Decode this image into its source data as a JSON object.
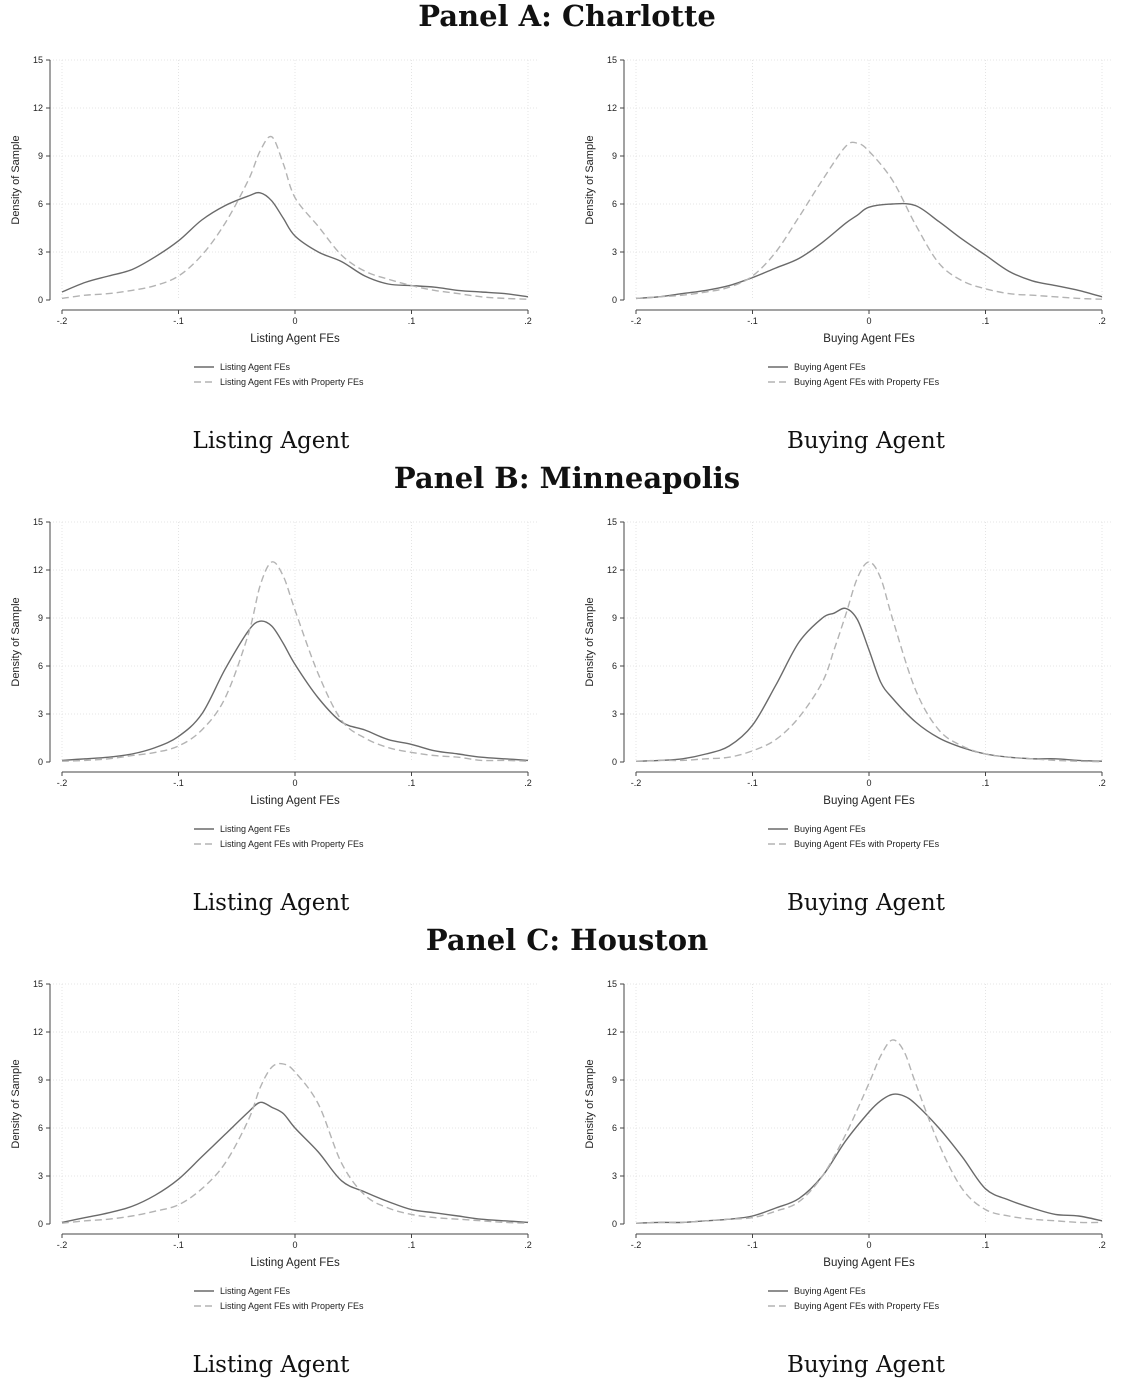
{
  "panels": [
    {
      "title": "Panel A: Charlotte"
    },
    {
      "title": "Panel B: Minneapolis"
    },
    {
      "title": "Panel C: Houston"
    }
  ],
  "captions": {
    "listing": "Listing Agent",
    "buying": "Buying Agent"
  },
  "colors": {
    "solid": "#6a6a6a",
    "dashed": "#b3b3b3",
    "grid": "#e4e4e4",
    "axis": "#444444"
  },
  "chart_data": [
    {
      "type": "line",
      "panel": "Panel A: Charlotte",
      "xlabel": "Listing Agent FEs",
      "ylabel": "Density of Sample",
      "xlim": [
        -0.2,
        0.2
      ],
      "ylim": [
        0,
        15
      ],
      "xticks": [
        -0.2,
        -0.1,
        0,
        0.1,
        0.2
      ],
      "xticklabels": [
        "-.2",
        "-.1",
        "0",
        ".1",
        ".2"
      ],
      "yticks": [
        0,
        3,
        6,
        9,
        12,
        15
      ],
      "yticklabels": [
        "0",
        "3",
        "6",
        "9",
        "12",
        "15"
      ],
      "grid": true,
      "legend_position": "bottom",
      "x": [
        -0.2,
        -0.18,
        -0.16,
        -0.14,
        -0.12,
        -0.1,
        -0.08,
        -0.06,
        -0.04,
        -0.03,
        -0.02,
        -0.01,
        0,
        0.02,
        0.04,
        0.06,
        0.08,
        0.1,
        0.12,
        0.14,
        0.16,
        0.18,
        0.2
      ],
      "series": [
        {
          "name": "Listing Agent FEs",
          "style": "solid",
          "values": [
            0.5,
            1.1,
            1.5,
            1.9,
            2.7,
            3.7,
            5.0,
            5.9,
            6.5,
            6.7,
            6.2,
            5.1,
            4.0,
            3.0,
            2.4,
            1.5,
            1.0,
            0.9,
            0.8,
            0.6,
            0.5,
            0.4,
            0.2
          ]
        },
        {
          "name": "Listing Agent FEs with Property FEs",
          "style": "dashed",
          "values": [
            0.1,
            0.3,
            0.4,
            0.6,
            0.9,
            1.5,
            2.8,
            4.8,
            7.5,
            9.3,
            10.2,
            8.5,
            6.4,
            4.6,
            2.8,
            1.8,
            1.3,
            0.9,
            0.6,
            0.4,
            0.2,
            0.1,
            0.05
          ]
        }
      ]
    },
    {
      "type": "line",
      "panel": "Panel A: Charlotte",
      "xlabel": "Buying Agent FEs",
      "ylabel": "Density of Sample",
      "xlim": [
        -0.2,
        0.2
      ],
      "ylim": [
        0,
        15
      ],
      "xticks": [
        -0.2,
        -0.1,
        0,
        0.1,
        0.2
      ],
      "xticklabels": [
        "-.2",
        "-.1",
        "0",
        ".1",
        ".2"
      ],
      "yticks": [
        0,
        3,
        6,
        9,
        12,
        15
      ],
      "yticklabels": [
        "0",
        "3",
        "6",
        "9",
        "12",
        "15"
      ],
      "grid": true,
      "legend_position": "bottom",
      "x": [
        -0.2,
        -0.18,
        -0.16,
        -0.14,
        -0.12,
        -0.1,
        -0.08,
        -0.06,
        -0.04,
        -0.02,
        -0.01,
        0,
        0.02,
        0.04,
        0.06,
        0.08,
        0.1,
        0.12,
        0.14,
        0.16,
        0.18,
        0.2
      ],
      "series": [
        {
          "name": "Buying Agent FEs",
          "style": "solid",
          "values": [
            0.1,
            0.2,
            0.4,
            0.6,
            0.9,
            1.4,
            2.0,
            2.6,
            3.6,
            4.8,
            5.3,
            5.8,
            6.0,
            5.9,
            4.9,
            3.8,
            2.8,
            1.8,
            1.2,
            0.9,
            0.6,
            0.2
          ]
        },
        {
          "name": "Buying Agent FEs with Property FEs",
          "style": "dashed",
          "values": [
            0.1,
            0.2,
            0.3,
            0.5,
            0.8,
            1.5,
            3.0,
            5.2,
            7.5,
            9.6,
            9.8,
            9.3,
            7.5,
            4.7,
            2.3,
            1.2,
            0.7,
            0.4,
            0.3,
            0.2,
            0.1,
            0.05
          ]
        }
      ]
    },
    {
      "type": "line",
      "panel": "Panel B: Minneapolis",
      "xlabel": "Listing Agent FEs",
      "ylabel": "Density of Sample",
      "xlim": [
        -0.2,
        0.2
      ],
      "ylim": [
        0,
        15
      ],
      "xticks": [
        -0.2,
        -0.1,
        0,
        0.1,
        0.2
      ],
      "xticklabels": [
        "-.2",
        "-.1",
        "0",
        ".1",
        ".2"
      ],
      "yticks": [
        0,
        3,
        6,
        9,
        12,
        15
      ],
      "yticklabels": [
        "0",
        "3",
        "6",
        "9",
        "12",
        "15"
      ],
      "grid": true,
      "legend_position": "bottom",
      "x": [
        -0.2,
        -0.18,
        -0.16,
        -0.14,
        -0.12,
        -0.1,
        -0.08,
        -0.06,
        -0.04,
        -0.03,
        -0.02,
        -0.01,
        0,
        0.02,
        0.04,
        0.06,
        0.08,
        0.1,
        0.12,
        0.14,
        0.16,
        0.18,
        0.2
      ],
      "series": [
        {
          "name": "Listing Agent FEs",
          "style": "solid",
          "values": [
            0.1,
            0.2,
            0.3,
            0.5,
            0.9,
            1.6,
            3.0,
            5.8,
            8.2,
            8.8,
            8.5,
            7.4,
            6.1,
            4.0,
            2.5,
            2.0,
            1.4,
            1.1,
            0.7,
            0.5,
            0.3,
            0.2,
            0.1
          ]
        },
        {
          "name": "Listing Agent FEs with Property FEs",
          "style": "dashed",
          "values": [
            0.05,
            0.1,
            0.2,
            0.4,
            0.6,
            1.0,
            2.0,
            4.0,
            8.0,
            11.0,
            12.5,
            11.6,
            9.5,
            5.5,
            2.6,
            1.5,
            0.9,
            0.6,
            0.4,
            0.3,
            0.1,
            0.1,
            0.05
          ]
        }
      ]
    },
    {
      "type": "line",
      "panel": "Panel B: Minneapolis",
      "xlabel": "Buying Agent FEs",
      "ylabel": "Density of Sample",
      "xlim": [
        -0.2,
        0.2
      ],
      "ylim": [
        0,
        15
      ],
      "xticks": [
        -0.2,
        -0.1,
        0,
        0.1,
        0.2
      ],
      "xticklabels": [
        "-.2",
        "-.1",
        "0",
        ".1",
        ".2"
      ],
      "yticks": [
        0,
        3,
        6,
        9,
        12,
        15
      ],
      "yticklabels": [
        "0",
        "3",
        "6",
        "9",
        "12",
        "15"
      ],
      "grid": true,
      "legend_position": "bottom",
      "x": [
        -0.2,
        -0.18,
        -0.16,
        -0.14,
        -0.12,
        -0.1,
        -0.08,
        -0.06,
        -0.04,
        -0.03,
        -0.02,
        -0.01,
        0,
        0.01,
        0.02,
        0.04,
        0.06,
        0.08,
        0.1,
        0.12,
        0.14,
        0.16,
        0.18,
        0.2
      ],
      "series": [
        {
          "name": "Buying Agent FEs",
          "style": "solid",
          "values": [
            0.05,
            0.1,
            0.2,
            0.5,
            1.0,
            2.3,
            4.8,
            7.5,
            9.0,
            9.3,
            9.6,
            8.9,
            7.0,
            5.0,
            4.0,
            2.5,
            1.5,
            0.9,
            0.5,
            0.3,
            0.2,
            0.2,
            0.1,
            0.05
          ]
        },
        {
          "name": "Buying Agent FEs with Property FEs",
          "style": "dashed",
          "values": [
            0.05,
            0.1,
            0.1,
            0.2,
            0.3,
            0.7,
            1.4,
            2.8,
            5.0,
            7.0,
            9.2,
            11.5,
            12.5,
            11.5,
            9.0,
            4.5,
            2.0,
            1.0,
            0.5,
            0.3,
            0.2,
            0.1,
            0.05,
            0.02
          ]
        }
      ]
    },
    {
      "type": "line",
      "panel": "Panel C: Houston",
      "xlabel": "Listing Agent FEs",
      "ylabel": "Density of Sample",
      "xlim": [
        -0.2,
        0.2
      ],
      "ylim": [
        0,
        15
      ],
      "xticks": [
        -0.2,
        -0.1,
        0,
        0.1,
        0.2
      ],
      "xticklabels": [
        "-.2",
        "-.1",
        "0",
        ".1",
        ".2"
      ],
      "yticks": [
        0,
        3,
        6,
        9,
        12,
        15
      ],
      "yticklabels": [
        "0",
        "3",
        "6",
        "9",
        "12",
        "15"
      ],
      "grid": true,
      "legend_position": "bottom",
      "x": [
        -0.2,
        -0.18,
        -0.16,
        -0.14,
        -0.12,
        -0.1,
        -0.08,
        -0.06,
        -0.04,
        -0.03,
        -0.02,
        -0.01,
        0,
        0.02,
        0.04,
        0.06,
        0.08,
        0.1,
        0.12,
        0.14,
        0.16,
        0.18,
        0.2
      ],
      "series": [
        {
          "name": "Listing Agent FEs",
          "style": "solid",
          "values": [
            0.1,
            0.4,
            0.7,
            1.1,
            1.8,
            2.8,
            4.2,
            5.6,
            7.0,
            7.6,
            7.3,
            6.9,
            6.0,
            4.5,
            2.7,
            2.0,
            1.4,
            0.9,
            0.7,
            0.5,
            0.3,
            0.2,
            0.1
          ]
        },
        {
          "name": "Listing Agent FEs with Property FEs",
          "style": "dashed",
          "values": [
            0.05,
            0.2,
            0.3,
            0.5,
            0.8,
            1.2,
            2.2,
            3.8,
            6.5,
            8.5,
            9.8,
            10.0,
            9.5,
            7.5,
            3.8,
            1.8,
            1.0,
            0.6,
            0.4,
            0.3,
            0.2,
            0.1,
            0.05
          ]
        }
      ]
    },
    {
      "type": "line",
      "panel": "Panel C: Houston",
      "xlabel": "Buying Agent FEs",
      "ylabel": "Density of Sample",
      "xlim": [
        -0.2,
        0.2
      ],
      "ylim": [
        0,
        15
      ],
      "xticks": [
        -0.2,
        -0.1,
        0,
        0.1,
        0.2
      ],
      "xticklabels": [
        "-.2",
        "-.1",
        "0",
        ".1",
        ".2"
      ],
      "yticks": [
        0,
        3,
        6,
        9,
        12,
        15
      ],
      "yticklabels": [
        "0",
        "3",
        "6",
        "9",
        "12",
        "15"
      ],
      "grid": true,
      "legend_position": "bottom",
      "x": [
        -0.2,
        -0.18,
        -0.16,
        -0.14,
        -0.12,
        -0.1,
        -0.08,
        -0.06,
        -0.04,
        -0.02,
        0,
        0.01,
        0.02,
        0.03,
        0.04,
        0.06,
        0.08,
        0.1,
        0.12,
        0.14,
        0.16,
        0.18,
        0.2
      ],
      "series": [
        {
          "name": "Buying Agent FEs",
          "style": "solid",
          "values": [
            0.05,
            0.1,
            0.1,
            0.2,
            0.3,
            0.5,
            1.0,
            1.6,
            3.0,
            5.2,
            7.0,
            7.7,
            8.1,
            8.0,
            7.5,
            6.0,
            4.2,
            2.2,
            1.5,
            1.0,
            0.6,
            0.5,
            0.2
          ]
        },
        {
          "name": "Buying Agent FEs with Property FEs",
          "style": "dashed",
          "values": [
            0.05,
            0.1,
            0.1,
            0.2,
            0.3,
            0.4,
            0.8,
            1.4,
            3.0,
            5.6,
            8.8,
            10.5,
            11.5,
            10.8,
            8.8,
            5.0,
            2.2,
            0.9,
            0.5,
            0.3,
            0.2,
            0.1,
            0.1
          ]
        }
      ]
    }
  ]
}
